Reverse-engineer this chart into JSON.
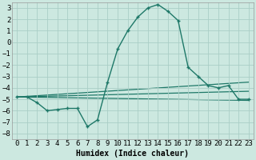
{
  "xlabel": "Humidex (Indice chaleur)",
  "background_color": "#cce8e0",
  "grid_color": "#aacec6",
  "line_color": "#1e7868",
  "xlim": [
    -0.5,
    23.5
  ],
  "ylim": [
    -8.5,
    3.5
  ],
  "xticks": [
    0,
    1,
    2,
    3,
    4,
    5,
    6,
    7,
    8,
    9,
    10,
    11,
    12,
    13,
    14,
    15,
    16,
    17,
    18,
    19,
    20,
    21,
    22,
    23
  ],
  "yticks": [
    -8,
    -7,
    -6,
    -5,
    -4,
    -3,
    -2,
    -1,
    0,
    1,
    2,
    3
  ],
  "curve_x": [
    0,
    1,
    2,
    3,
    4,
    5,
    6,
    7,
    8,
    9,
    10,
    11,
    12,
    13,
    14,
    15,
    16,
    17,
    18,
    19,
    20,
    21,
    22,
    23
  ],
  "curve_y": [
    -4.8,
    -4.8,
    -5.3,
    -6.0,
    -5.9,
    -5.8,
    -5.8,
    -7.4,
    -6.8,
    -3.5,
    -0.6,
    1.0,
    2.2,
    3.0,
    3.3,
    2.7,
    1.9,
    -2.2,
    -3.0,
    -3.8,
    -4.0,
    -3.8,
    -5.0,
    -5.0
  ],
  "trend1_x": [
    0,
    23
  ],
  "trend1_y": [
    -4.8,
    -3.5
  ],
  "trend2_x": [
    0,
    23
  ],
  "trend2_y": [
    -4.8,
    -4.3
  ],
  "trend3_x": [
    0,
    23
  ],
  "trend3_y": [
    -4.8,
    -5.1
  ],
  "font_size": 6.5,
  "xlabel_fontsize": 7
}
